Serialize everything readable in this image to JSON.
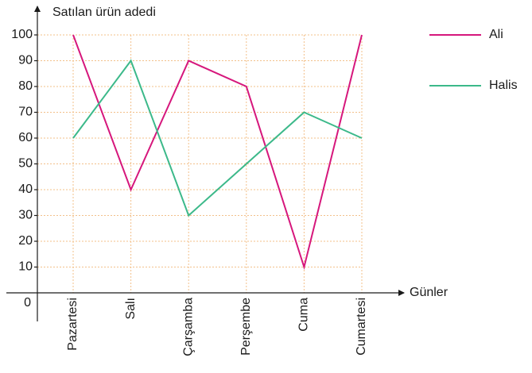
{
  "chart_data": {
    "type": "line",
    "ylabel": "Satılan ürün adedi",
    "xlabel": "Günler",
    "categories": [
      "Pazartesi",
      "Salı",
      "Çarşamba",
      "Perşembe",
      "Cuma",
      "Cumartesi"
    ],
    "series": [
      {
        "name": "Ali",
        "color": "#d6177c",
        "values": [
          100,
          40,
          90,
          80,
          10,
          100
        ]
      },
      {
        "name": "Halis",
        "color": "#3cb98a",
        "values": [
          60,
          90,
          30,
          50,
          70,
          60
        ]
      }
    ],
    "ylim": [
      0,
      100
    ],
    "yticks": [
      0,
      10,
      20,
      30,
      40,
      50,
      60,
      70,
      80,
      90,
      100
    ],
    "grid": true
  }
}
